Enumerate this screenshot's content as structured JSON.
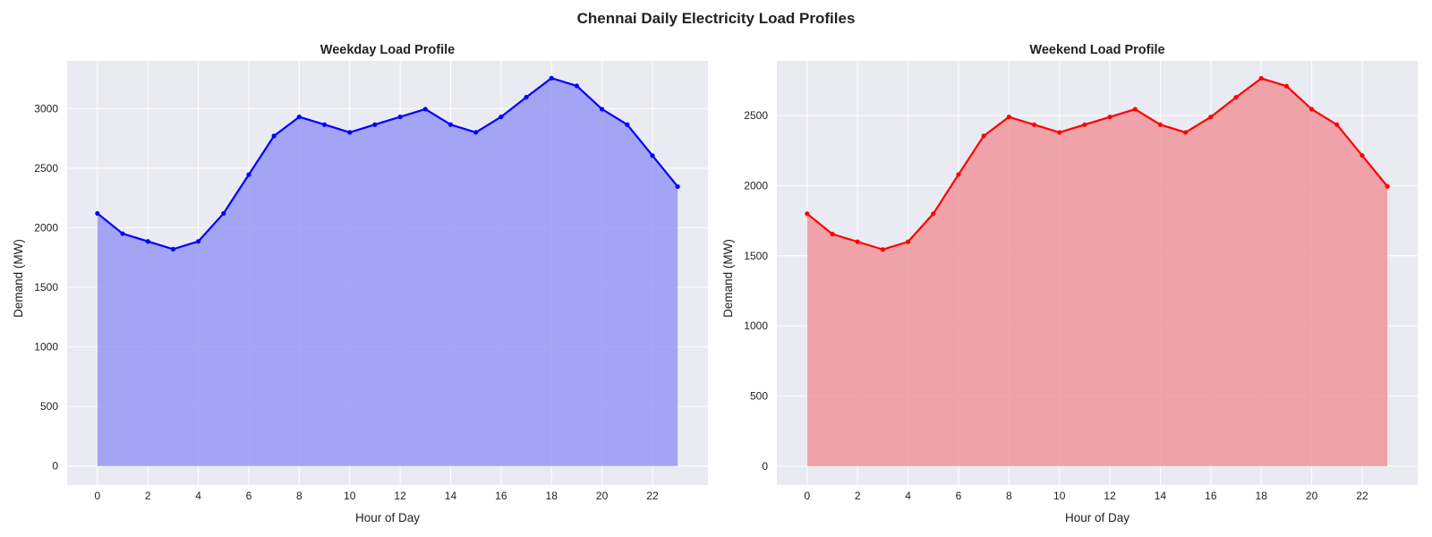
{
  "figure": {
    "title": "Chennai Daily Electricity Load Profiles"
  },
  "chart_data": [
    {
      "type": "area",
      "title": "Weekday Load Profile",
      "xlabel": "Hour of Day",
      "ylabel": "Demand (MW)",
      "x": [
        0,
        1,
        2,
        3,
        4,
        5,
        6,
        7,
        8,
        9,
        10,
        11,
        12,
        13,
        14,
        15,
        16,
        17,
        18,
        19,
        20,
        21,
        22,
        23
      ],
      "y": [
        2120,
        1950,
        1885,
        1820,
        1885,
        2120,
        2445,
        2770,
        2930,
        2865,
        2800,
        2865,
        2930,
        2995,
        2865,
        2800,
        2930,
        3095,
        3255,
        3190,
        2995,
        2865,
        2605,
        2345
      ],
      "xlim": [
        -1.2,
        24.2
      ],
      "ylim": [
        -160,
        3400
      ],
      "xticks": [
        0,
        2,
        4,
        6,
        8,
        10,
        12,
        14,
        16,
        18,
        20,
        22
      ],
      "yticks": [
        0,
        500,
        1000,
        1500,
        2000,
        2500,
        3000
      ],
      "line_color": "#0000ff",
      "fill_color": "#8f8ff5",
      "grid": true
    },
    {
      "type": "area",
      "title": "Weekend Load Profile",
      "xlabel": "Hour of Day",
      "ylabel": "Demand (MW)",
      "x": [
        0,
        1,
        2,
        3,
        4,
        5,
        6,
        7,
        8,
        9,
        10,
        11,
        12,
        13,
        14,
        15,
        16,
        17,
        18,
        19,
        20,
        21,
        22,
        23
      ],
      "y": [
        1800,
        1655,
        1600,
        1545,
        1600,
        1800,
        2080,
        2355,
        2490,
        2435,
        2380,
        2435,
        2490,
        2545,
        2435,
        2380,
        2490,
        2630,
        2765,
        2710,
        2545,
        2435,
        2215,
        1995
      ],
      "xlim": [
        -1.2,
        24.2
      ],
      "ylim": [
        -135,
        2890
      ],
      "xticks": [
        0,
        2,
        4,
        6,
        8,
        10,
        12,
        14,
        16,
        18,
        20,
        22
      ],
      "yticks": [
        0,
        500,
        1000,
        1500,
        2000,
        2500
      ],
      "line_color": "#ff0000",
      "fill_color": "#f08e95",
      "grid": true
    }
  ]
}
